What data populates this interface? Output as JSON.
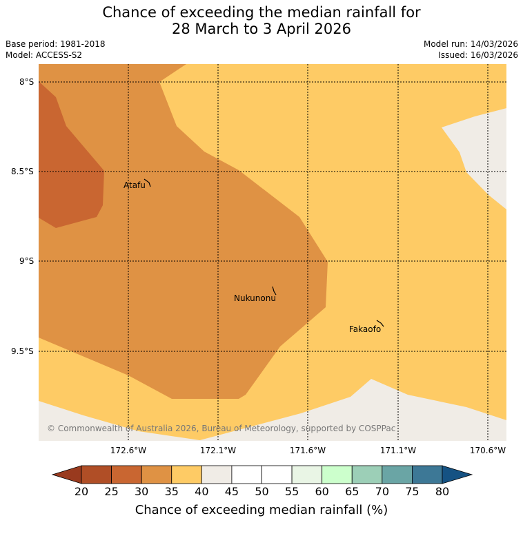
{
  "title": {
    "line1": "Chance of exceeding the median rainfall for",
    "line2": "28 March to 3 April 2026"
  },
  "meta": {
    "base_period": "Base period: 1981-2018",
    "model": "Model: ACCESS-S2",
    "model_run": "Model run: 14/03/2026",
    "issued": "Issued: 16/03/2026"
  },
  "map": {
    "places": [
      {
        "name": "Atafu"
      },
      {
        "name": "Nukunonu"
      },
      {
        "name": "Fakaofo"
      }
    ],
    "copyright": "© Commonwealth of Australia 2026, Bureau of Meteorology, supported by COSPPac",
    "lon_labels": [
      "172.6°W",
      "172.1°W",
      "171.6°W",
      "171.1°W",
      "170.6°W"
    ],
    "lat_labels": [
      "8°S",
      "8.5°S",
      "9°S",
      "9.5°S"
    ],
    "colors": {
      "20-25": "#b04e26",
      "25-30": "#c96631",
      "30-35": "#df9244",
      "35-40": "#fecb65",
      "40-45": "#f0ece6"
    }
  },
  "colorbar": {
    "ticks": [
      "20",
      "25",
      "30",
      "35",
      "40",
      "45",
      "50",
      "55",
      "60",
      "65",
      "70",
      "75",
      "80"
    ],
    "colors": [
      "#b04e26",
      "#c96631",
      "#df9244",
      "#fecb65",
      "#f0ece6",
      "#ffffff",
      "#ffffff",
      "#e9f5e5",
      "#ccffcc",
      "#9ccfb7",
      "#6aa5a5",
      "#3d7896"
    ],
    "under_color": "#993a1e",
    "over_color": "#155283",
    "label": "Chance of exceeding median rainfall (%)"
  }
}
